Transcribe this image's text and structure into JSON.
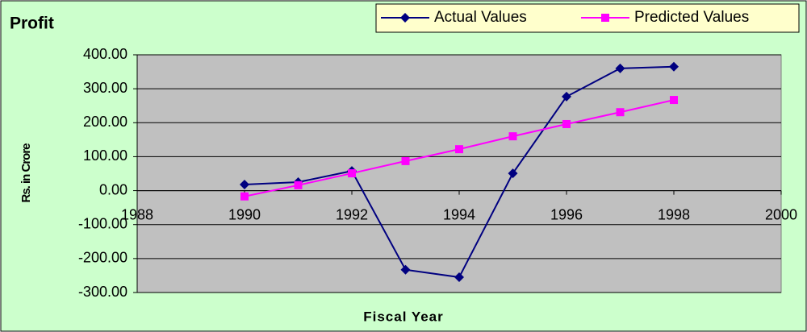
{
  "chart_data": {
    "type": "line",
    "title": "Profit",
    "x_label": "Fiscal Year",
    "y_label": "Rs. in Crore",
    "x": [
      1990,
      1991,
      1992,
      1993,
      1994,
      1995,
      1996,
      1997,
      1998
    ],
    "series": [
      {
        "name": "Actual Values",
        "color": "#000080",
        "marker": "diamond",
        "values": [
          18,
          25,
          58,
          -233,
          -255,
          51,
          277,
          360,
          365
        ]
      },
      {
        "name": "Predicted Values",
        "color": "#ff00ff",
        "marker": "square",
        "values": [
          -17,
          16,
          51,
          87,
          122,
          160,
          196,
          231,
          267
        ]
      }
    ],
    "xlim": [
      1988,
      2000
    ],
    "xticks": [
      1988,
      1990,
      1992,
      1994,
      1996,
      1998,
      2000
    ],
    "ylim": [
      -300,
      400
    ],
    "yticks": [
      {
        "value": -300,
        "label": "-300.00"
      },
      {
        "value": -200,
        "label": "-200.00"
      },
      {
        "value": -100,
        "label": "-100.00"
      },
      {
        "value": 0,
        "label": "0.00"
      },
      {
        "value": 100,
        "label": "100.00"
      },
      {
        "value": 200,
        "label": "200.00"
      },
      {
        "value": 300,
        "label": "300.00"
      },
      {
        "value": 400,
        "label": "400.00"
      }
    ],
    "grid": true,
    "legend": "top-right"
  }
}
